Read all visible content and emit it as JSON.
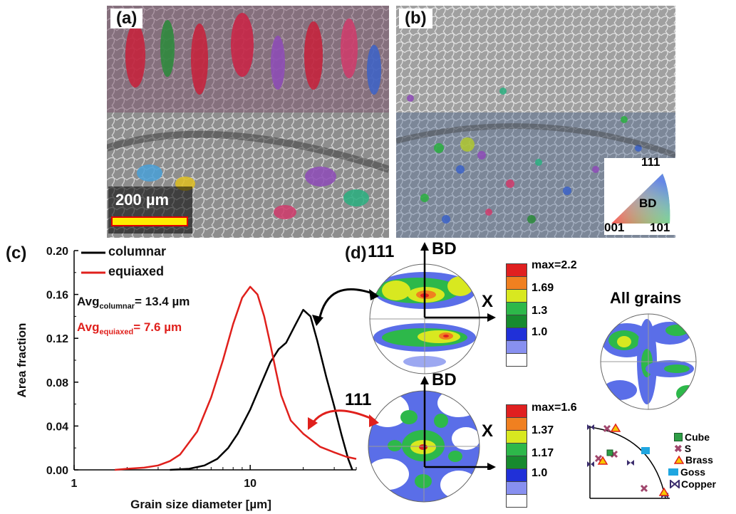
{
  "panels": {
    "a": {
      "label": "(a)"
    },
    "b": {
      "label": "(b)"
    },
    "c": {
      "label": "(c)"
    },
    "d": {
      "label": "(d)"
    }
  },
  "scalebar": {
    "text": "200 µm",
    "color": "#ffee00",
    "border": "#e00000"
  },
  "ipf_key": {
    "top": "111",
    "center": "BD",
    "left": "001",
    "right": "101"
  },
  "chart_data": {
    "type": "line",
    "xscale": "log",
    "xlabel": "Grain size diameter [µm]",
    "ylabel": "Area fraction",
    "xlim": [
      1,
      40
    ],
    "ylim": [
      0,
      0.2
    ],
    "xticks": [
      "1",
      "10"
    ],
    "yticks": [
      "0.00",
      "0.04",
      "0.08",
      "0.12",
      "0.16",
      "0.20"
    ],
    "legend": "top-left",
    "series": [
      {
        "name": "columnar",
        "color": "#000000",
        "x": [
          3.5,
          4.5,
          5.5,
          6.5,
          7.5,
          8.5,
          10,
          11.5,
          13,
          14.5,
          16,
          18,
          20,
          22,
          24,
          27,
          30,
          33,
          36,
          38
        ],
        "y": [
          0.0,
          0.001,
          0.004,
          0.01,
          0.02,
          0.033,
          0.055,
          0.078,
          0.098,
          0.11,
          0.116,
          0.132,
          0.146,
          0.14,
          0.118,
          0.085,
          0.058,
          0.032,
          0.01,
          0.0
        ]
      },
      {
        "name": "equiaxed",
        "color": "#e0201c",
        "x": [
          1.7,
          2.0,
          2.5,
          3.0,
          3.5,
          4.0,
          5.0,
          6.0,
          7.0,
          8.0,
          9.0,
          10.0,
          11.0,
          12.0,
          13.0,
          14.0,
          15.0,
          17.0,
          20.0,
          25.0,
          30.0,
          35.0,
          40.0
        ],
        "y": [
          0.0,
          0.001,
          0.002,
          0.004,
          0.008,
          0.014,
          0.035,
          0.066,
          0.1,
          0.133,
          0.157,
          0.167,
          0.16,
          0.14,
          0.115,
          0.09,
          0.068,
          0.045,
          0.033,
          0.021,
          0.016,
          0.012,
          0.01
        ]
      }
    ],
    "annotations": [
      {
        "name": "avg-columnar",
        "base": "Avg",
        "sub": "columnar",
        "rest": "= 13.4 µm",
        "color": "#111111"
      },
      {
        "name": "avg-equiaxed",
        "base": "Avg",
        "sub": "equiaxed",
        "rest": "= 7.6 µm",
        "color": "#e0201c"
      }
    ]
  },
  "pole_figures": [
    {
      "name": "columnar",
      "plane": "111",
      "axis_bd": "BD",
      "axis_x": "X",
      "legend": [
        "max=2.2",
        "1.69",
        "1.3",
        "1.0"
      ]
    },
    {
      "name": "equiaxed",
      "plane": "111",
      "axis_bd": "BD",
      "axis_x": "X",
      "legend": [
        "max=1.6",
        "1.37",
        "1.17",
        "1.0"
      ]
    }
  ],
  "all_grains": {
    "title": "All grains"
  },
  "texture_legend": [
    {
      "label": "Cube",
      "color": "#2e9e46"
    },
    {
      "label": "S",
      "color": "#a0466c"
    },
    {
      "label": "Brass",
      "color": "#f7c800"
    },
    {
      "label": "Goss",
      "color": "#1fa6e0"
    },
    {
      "label": "Copper",
      "color": "#3c2e6e"
    }
  ],
  "colors": {
    "columnar": "#000000",
    "equiaxed": "#e0201c"
  }
}
